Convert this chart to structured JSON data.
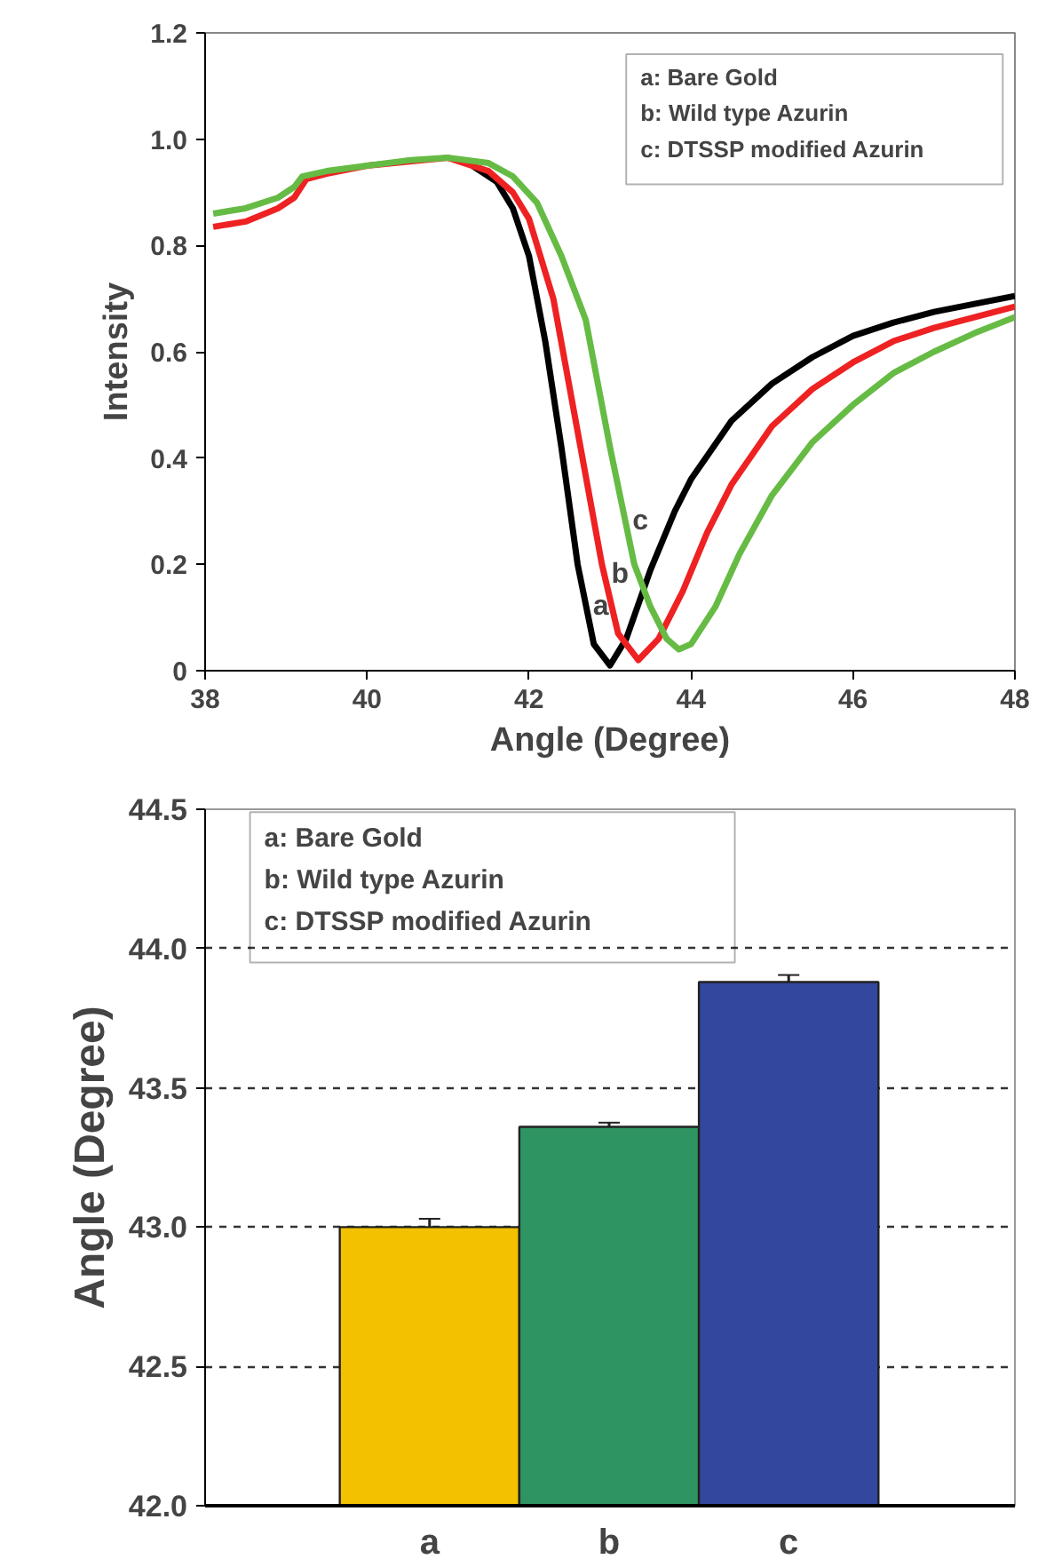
{
  "chart_data": [
    {
      "type": "line",
      "xlabel": "Angle (Degree)",
      "ylabel": "Intensity",
      "xlim": [
        38,
        48
      ],
      "ylim": [
        0,
        1.2
      ],
      "xticks": [
        38,
        40,
        42,
        44,
        46,
        48
      ],
      "yticks": [
        0,
        0.2,
        0.4,
        0.6,
        0.8,
        {
          "value": 1,
          "label": "1.0"
        },
        1.2
      ],
      "grid": false,
      "marker": "none",
      "line_style": "solid",
      "annotations": [
        "a: Bare Gold",
        "b: Wild type Azurin",
        "c: DTSSP modified Azurin",
        {
          "text": "a",
          "x": 42.7,
          "y": 0.12
        },
        {
          "text": "b",
          "x": 42.93,
          "y": 0.18
        },
        {
          "text": "c",
          "x": 43.19,
          "y": 0.28
        }
      ],
      "series": [
        {
          "color": "#000000",
          "x": [
            41.3,
            41.6,
            41.8,
            42.0,
            42.2,
            42.4,
            42.6,
            42.8,
            43.0,
            43.2,
            43.5,
            43.8,
            44.0,
            44.5,
            45,
            45.5,
            46,
            46.5,
            47,
            47.5,
            48
          ],
          "values": [
            0.95,
            0.92,
            0.87,
            0.78,
            0.62,
            0.42,
            0.2,
            0.05,
            0.01,
            0.06,
            0.19,
            0.3,
            0.36,
            0.47,
            0.54,
            0.59,
            0.63,
            0.655,
            0.675,
            0.69,
            0.705
          ]
        },
        {
          "color": "#ee2222",
          "x": [
            38.1,
            38.5,
            38.9,
            39.1,
            39.25,
            39.5,
            40,
            41.0,
            41.5,
            41.8,
            42.0,
            42.3,
            42.6,
            42.9,
            43.1,
            43.35,
            43.6,
            43.9,
            44.2,
            44.5,
            45,
            45.5,
            46,
            46.5,
            47,
            47.5,
            48
          ],
          "values": [
            0.835,
            0.845,
            0.87,
            0.89,
            0.925,
            0.935,
            0.95,
            0.965,
            0.94,
            0.9,
            0.85,
            0.7,
            0.45,
            0.2,
            0.07,
            0.02,
            0.06,
            0.15,
            0.26,
            0.35,
            0.46,
            0.53,
            0.58,
            0.62,
            0.645,
            0.665,
            0.685
          ]
        },
        {
          "color": "#66bb44",
          "x": [
            38.1,
            38.5,
            38.9,
            39.1,
            39.2,
            39.5,
            40,
            40.5,
            41.0,
            41.5,
            41.8,
            42.1,
            42.4,
            42.7,
            43.0,
            43.3,
            43.5,
            43.7,
            43.85,
            44.0,
            44.3,
            44.6,
            45,
            45.5,
            46,
            46.5,
            47,
            47.5,
            48
          ],
          "values": [
            0.86,
            0.87,
            0.89,
            0.91,
            0.93,
            0.94,
            0.95,
            0.96,
            0.965,
            0.955,
            0.93,
            0.88,
            0.78,
            0.66,
            0.42,
            0.2,
            0.12,
            0.06,
            0.04,
            0.05,
            0.12,
            0.22,
            0.33,
            0.43,
            0.5,
            0.56,
            0.6,
            0.635,
            0.665
          ]
        }
      ]
    },
    {
      "type": "bar",
      "ylabel": "Angle (Degree)",
      "categories": [
        "a",
        "b",
        "c"
      ],
      "values": [
        43.0,
        43.36,
        43.88
      ],
      "errors": [
        0.03,
        0.015,
        0.025
      ],
      "colors": [
        "#f2c200",
        "#2e9462",
        "#34479e"
      ],
      "ylim": [
        42,
        44.5
      ],
      "yticks": [
        {
          "value": 42,
          "label": "42.0"
        },
        42.5,
        {
          "value": 43,
          "label": "43.0"
        },
        43.5,
        {
          "value": 44,
          "label": "44.0"
        },
        44.5
      ],
      "grid": "y",
      "annotations": [
        "a: Bare Gold",
        "b: Wild type Azurin",
        "c: DTSSP modified Azurin"
      ]
    }
  ]
}
